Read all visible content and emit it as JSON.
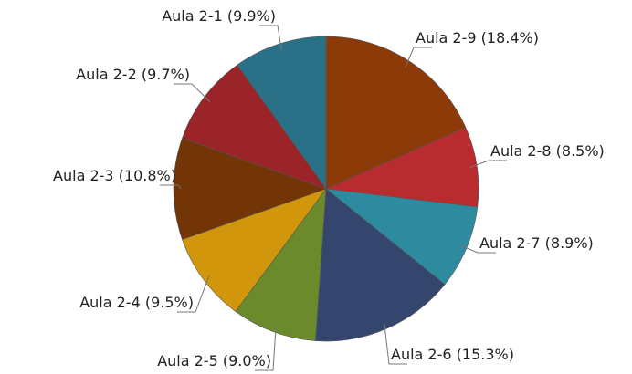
{
  "chart_data": {
    "type": "pie",
    "categories": [
      "Aula 2-9",
      "Aula 2-8",
      "Aula 2-7",
      "Aula 2-6",
      "Aula 2-5",
      "Aula 2-4",
      "Aula 2-3",
      "Aula 2-2",
      "Aula 2-1"
    ],
    "values": [
      18.4,
      8.5,
      8.9,
      15.3,
      9.0,
      9.5,
      10.8,
      9.7,
      9.9
    ],
    "value_labels": [
      "(18.4%)",
      "(8.5%)",
      "(8.9%)",
      "(15.3%)",
      "(9.0%)",
      "(9.5%)",
      "(10.8%)",
      "(9.7%)",
      "(9.9%)"
    ],
    "colors": [
      "#8b3a08",
      "#b82c30",
      "#2e8a9e",
      "#35466e",
      "#6a8a2c",
      "#d1960c",
      "#733406",
      "#9a2428",
      "#2a7086"
    ]
  }
}
